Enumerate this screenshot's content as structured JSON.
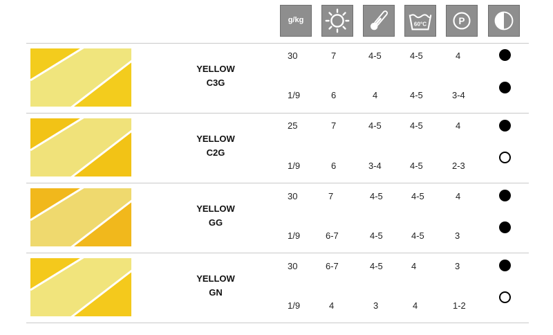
{
  "header": {
    "dosage_label": "g/kg",
    "icons": [
      "dosage-icon",
      "light-fastness-icon",
      "heat-fastness-icon",
      "wash-60c-icon",
      "dry-cleaning-p-icon",
      "contrast-icon"
    ],
    "wash_label": "60°C",
    "dryclean_label": "P"
  },
  "colors": {
    "icon_bg": "#8e8e8e",
    "separator": "#c8c8c8",
    "swatch_yellow_c3g": "#f3cc1d",
    "swatch_yellow_c2g": "#f2c316",
    "swatch_yellow_gg": "#f1b81c",
    "swatch_yellow_gn": "#f4c91c"
  },
  "rows": [
    {
      "name_line1": "YELLOW",
      "name_line2": "C3G",
      "top": {
        "dosage": "30",
        "light": "7",
        "heat": "4-5",
        "wash": "4-5",
        "dry": "4",
        "contrast": "filled"
      },
      "bottom": {
        "dosage": "1/9",
        "light": "6",
        "heat": "4",
        "wash": "4-5",
        "dry": "3-4",
        "contrast": "filled"
      }
    },
    {
      "name_line1": "YELLOW",
      "name_line2": "C2G",
      "top": {
        "dosage": "25",
        "light": "7",
        "heat": "4-5",
        "wash": "4-5",
        "dry": "4",
        "contrast": "filled"
      },
      "bottom": {
        "dosage": "1/9",
        "light": "6",
        "heat": "3-4",
        "wash": "4-5",
        "dry": "2-3",
        "contrast": "open"
      }
    },
    {
      "name_line1": "YELLOW",
      "name_line2": "GG",
      "top": {
        "dosage": "30",
        "light": "7",
        "heat": "4-5",
        "wash": "4-5",
        "dry": "4",
        "contrast": "filled"
      },
      "bottom": {
        "dosage": "1/9",
        "light": "6-7",
        "heat": "4-5",
        "wash": "4-5",
        "dry": "3",
        "contrast": "filled"
      }
    },
    {
      "name_line1": "YELLOW",
      "name_line2": "GN",
      "top": {
        "dosage": "30",
        "light": "6-7",
        "heat": "4-5",
        "wash": "4",
        "dry": "3",
        "contrast": "filled"
      },
      "bottom": {
        "dosage": "1/9",
        "light": "4",
        "heat": "3",
        "wash": "4",
        "dry": "1-2",
        "contrast": "open"
      }
    }
  ]
}
